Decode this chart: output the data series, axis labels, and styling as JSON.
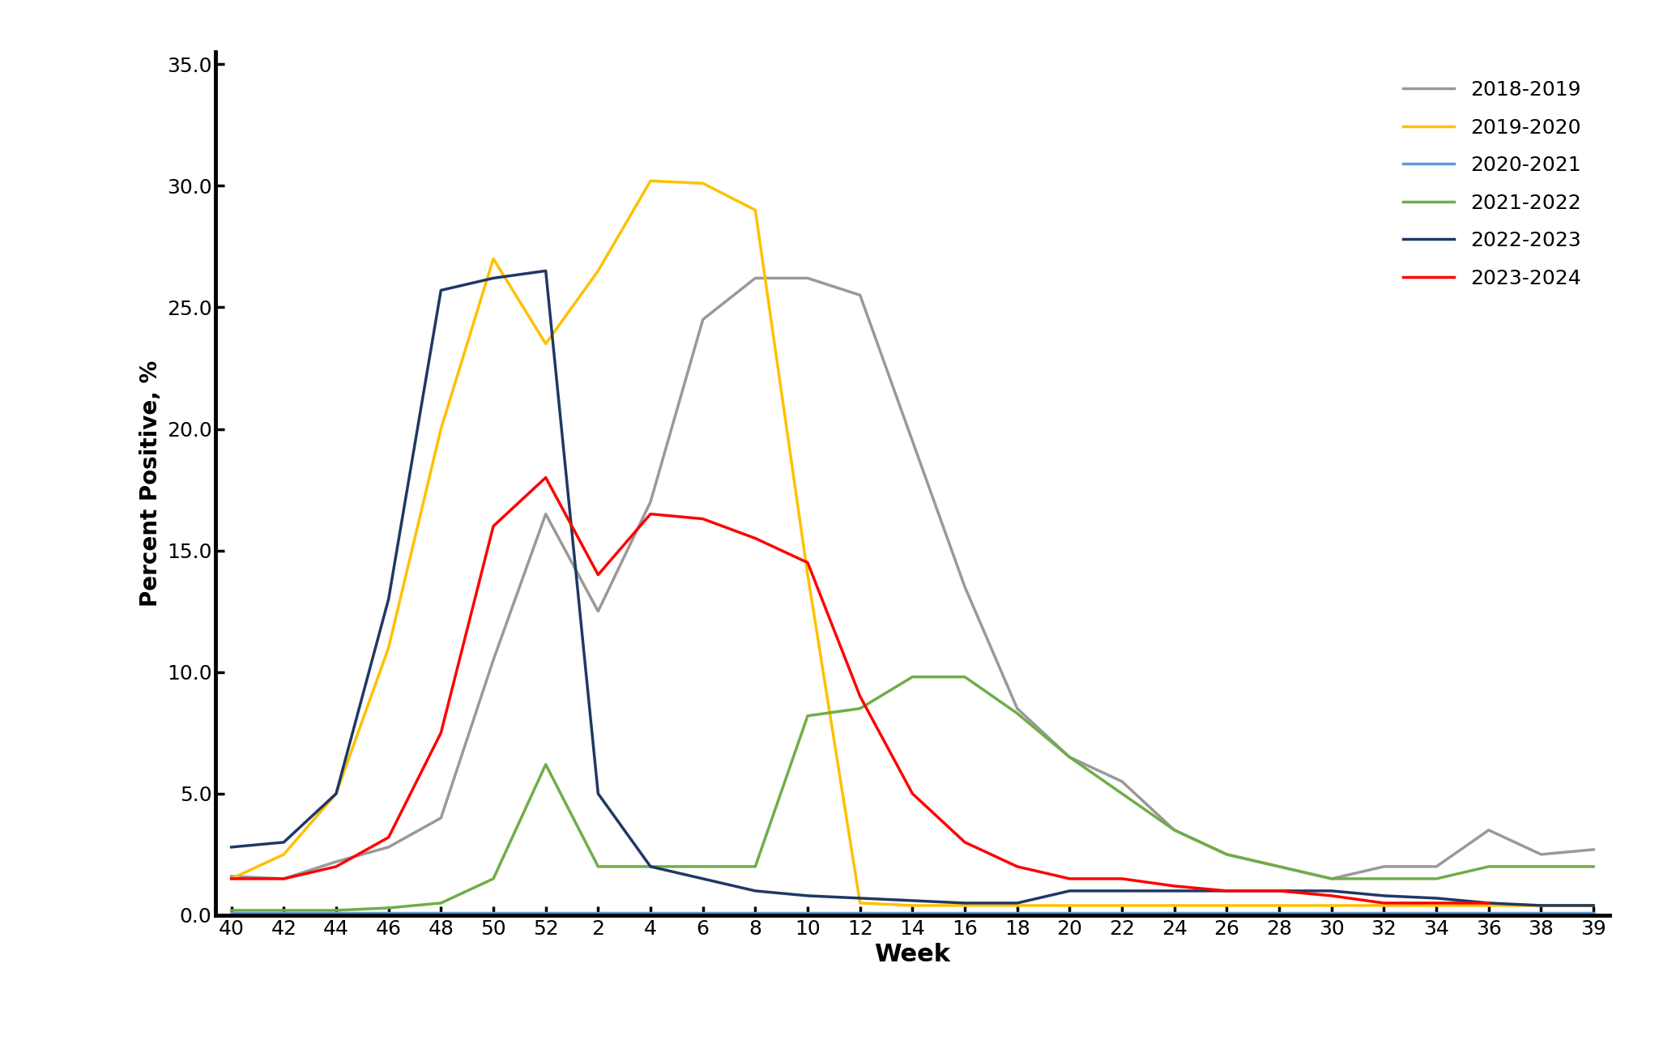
{
  "xlabel": "Week",
  "ylabel": "Percent Positive, %",
  "ylim": [
    0,
    35.5
  ],
  "yticks": [
    0.0,
    5.0,
    10.0,
    15.0,
    20.0,
    25.0,
    30.0,
    35.0
  ],
  "xtick_labels": [
    "40",
    "42",
    "44",
    "46",
    "48",
    "50",
    "52",
    "2",
    "4",
    "6",
    "8",
    "10",
    "12",
    "14",
    "16",
    "18",
    "20",
    "22",
    "24",
    "26",
    "28",
    "30",
    "32",
    "34",
    "36",
    "38",
    "39"
  ],
  "background_color": "#ffffff",
  "seasons": [
    {
      "label": "2018-2019",
      "color": "#999999",
      "linewidth": 2.5,
      "data": [
        1.6,
        1.5,
        2.2,
        2.8,
        4.0,
        10.5,
        16.5,
        12.5,
        17.0,
        24.5,
        26.2,
        26.2,
        25.5,
        19.5,
        13.5,
        8.5,
        6.5,
        5.5,
        3.5,
        2.5,
        2.0,
        1.5,
        2.0,
        2.0,
        3.5,
        2.5,
        2.7
      ]
    },
    {
      "label": "2019-2020",
      "color": "#FFC000",
      "linewidth": 2.5,
      "data": [
        1.5,
        2.5,
        5.0,
        11.0,
        20.0,
        27.0,
        23.5,
        26.5,
        30.2,
        30.1,
        29.0,
        14.0,
        0.5,
        0.4,
        0.4,
        0.4,
        0.4,
        0.4,
        0.4,
        0.4,
        0.4,
        0.4,
        0.4,
        0.4,
        0.4,
        0.4,
        0.4
      ]
    },
    {
      "label": "2020-2021",
      "color": "#5B9BD5",
      "linewidth": 2.5,
      "data": [
        0.1,
        0.1,
        0.1,
        0.1,
        0.1,
        0.1,
        0.1,
        0.1,
        0.1,
        0.1,
        0.1,
        0.1,
        0.1,
        0.1,
        0.1,
        0.1,
        0.1,
        0.1,
        0.1,
        0.1,
        0.1,
        0.1,
        0.1,
        0.1,
        0.1,
        0.1,
        0.1
      ]
    },
    {
      "label": "2021-2022",
      "color": "#70AD47",
      "linewidth": 2.5,
      "data": [
        0.2,
        0.2,
        0.2,
        0.3,
        0.5,
        1.5,
        6.2,
        2.0,
        2.0,
        2.0,
        2.0,
        8.2,
        8.5,
        9.8,
        9.8,
        8.3,
        6.5,
        5.0,
        3.5,
        2.5,
        2.0,
        1.5,
        1.5,
        1.5,
        2.0,
        2.0,
        2.0
      ]
    },
    {
      "label": "2022-2023",
      "color": "#1F3864",
      "linewidth": 2.5,
      "data": [
        2.8,
        3.0,
        5.0,
        13.0,
        25.7,
        26.2,
        26.5,
        5.0,
        2.0,
        1.5,
        1.0,
        0.8,
        0.7,
        0.6,
        0.5,
        0.5,
        1.0,
        1.0,
        1.0,
        1.0,
        1.0,
        1.0,
        0.8,
        0.7,
        0.5,
        0.4,
        0.4
      ]
    },
    {
      "label": "2023-2024",
      "color": "#FF0000",
      "linewidth": 2.5,
      "data": [
        1.5,
        1.5,
        2.0,
        3.2,
        7.5,
        16.0,
        18.0,
        14.0,
        16.5,
        16.3,
        15.5,
        14.5,
        9.0,
        5.0,
        3.0,
        2.0,
        1.5,
        1.5,
        1.2,
        1.0,
        1.0,
        0.8,
        0.5,
        0.5,
        0.5,
        null,
        null
      ]
    }
  ]
}
